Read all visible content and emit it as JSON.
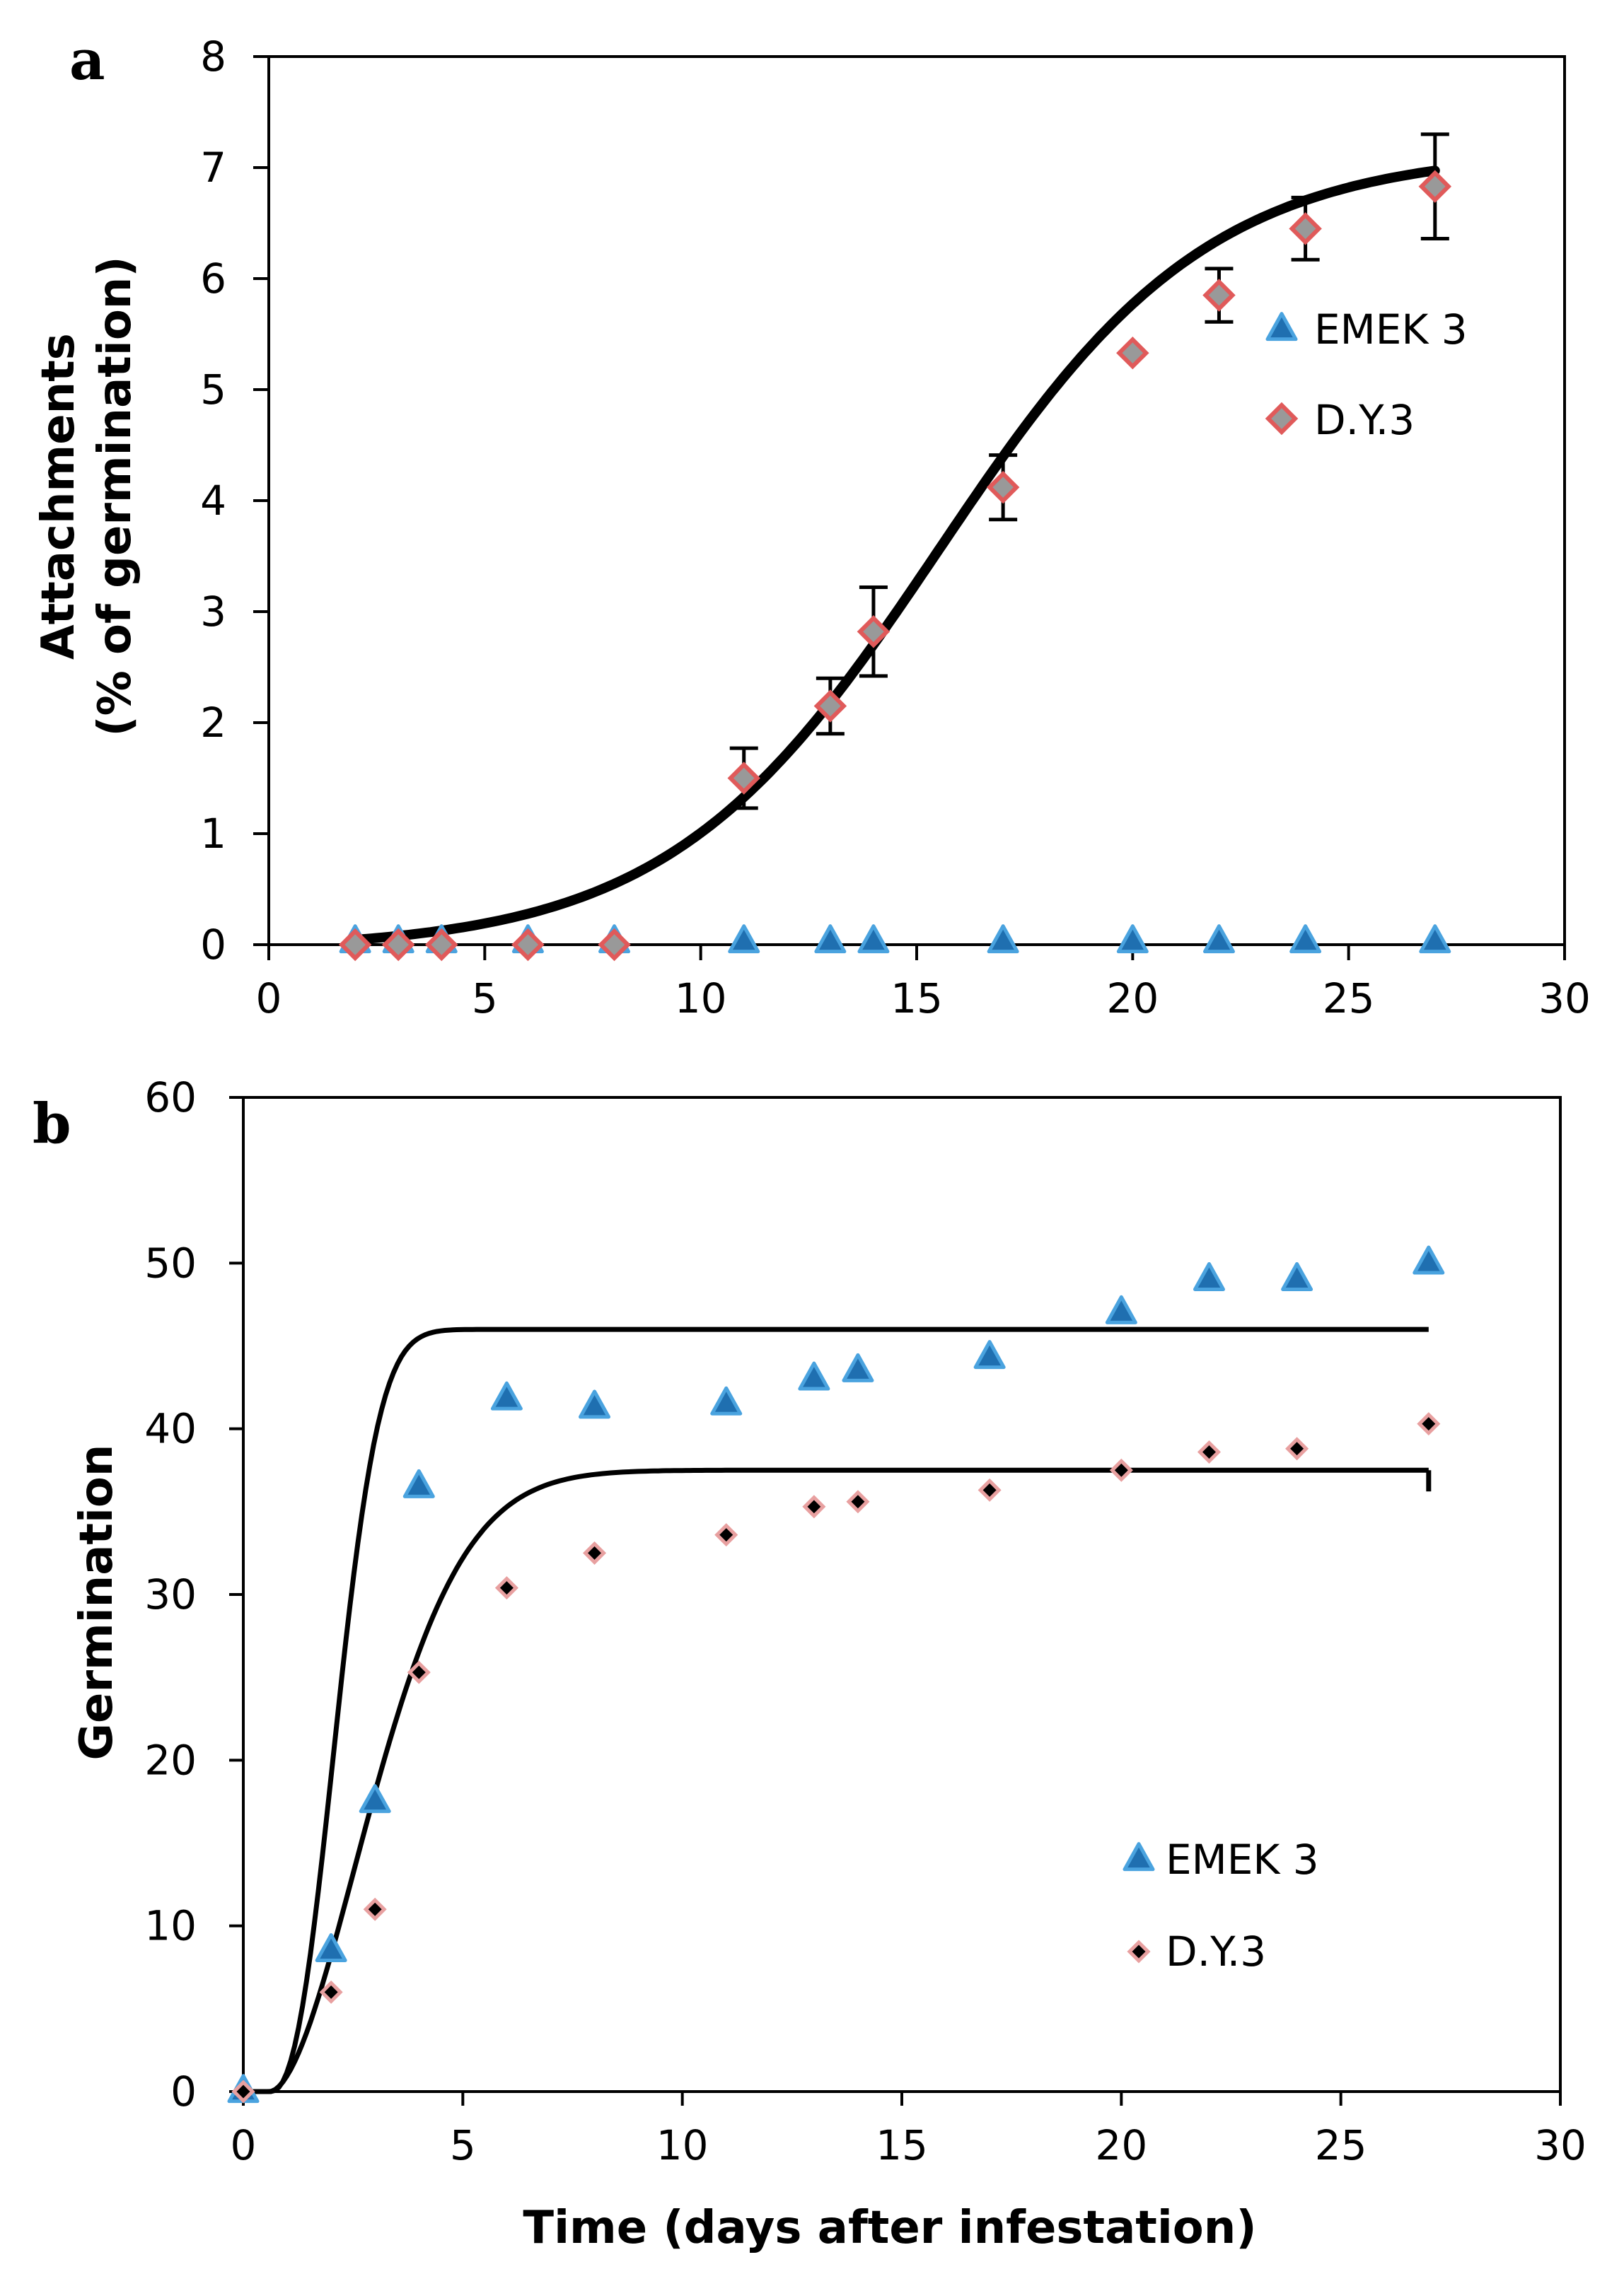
{
  "chart_data": [
    {
      "type": "scatter",
      "panel_label": "a",
      "title": "",
      "xlabel": "",
      "ylabel_line1": "Attachments",
      "ylabel_line2": "(% of germination)",
      "xlim": [
        0,
        30
      ],
      "ylim": [
        0,
        8
      ],
      "xticks": [
        0,
        5,
        10,
        15,
        20,
        25,
        30
      ],
      "yticks": [
        0,
        1,
        2,
        3,
        4,
        5,
        6,
        7,
        8
      ],
      "legend_position": "right",
      "series": [
        {
          "name": "EMEK 3",
          "marker": "triangle",
          "color": "#1f6fb0",
          "x": [
            2,
            3,
            4,
            6,
            8,
            11,
            13,
            14,
            17,
            20,
            22,
            24,
            27
          ],
          "y": [
            0,
            0,
            0,
            0,
            0,
            0,
            0,
            0,
            0,
            0,
            0,
            0,
            0
          ]
        },
        {
          "name": "D.Y.3",
          "marker": "diamond",
          "color": "#999999",
          "edge_color": "#e05a5a",
          "x": [
            2,
            3,
            4,
            6,
            8,
            11,
            13,
            14,
            17,
            20,
            22,
            24,
            27
          ],
          "y": [
            0,
            0,
            0,
            0,
            0,
            1.5,
            2.15,
            2.82,
            4.12,
            5.33,
            5.85,
            6.45,
            6.83
          ],
          "error": [
            0,
            0,
            0,
            0,
            0,
            0.27,
            0.25,
            0.4,
            0.29,
            0,
            0.24,
            0.28,
            0.47
          ]
        }
      ],
      "fit_curve": {
        "type": "logistic",
        "max": 7.2,
        "midpoint": 15.5,
        "rate": 0.32,
        "x_range": [
          2,
          27
        ]
      }
    },
    {
      "type": "scatter",
      "panel_label": "b",
      "title": "",
      "xlabel": "Time (days after infestation)",
      "ylabel": "Germination",
      "xlim": [
        0,
        30
      ],
      "ylim": [
        0,
        60
      ],
      "xticks": [
        0,
        5,
        10,
        15,
        20,
        25,
        30
      ],
      "yticks": [
        0,
        10,
        20,
        30,
        40,
        50,
        60
      ],
      "legend_position": "bottom-right",
      "series": [
        {
          "name": "EMEK 3",
          "marker": "triangle",
          "color": "#1f6fb0",
          "x": [
            0,
            2,
            3,
            4,
            6,
            8,
            11,
            13,
            14,
            17,
            20,
            22,
            24,
            27
          ],
          "y": [
            0,
            8.5,
            17.5,
            36.5,
            41.8,
            41.3,
            41.5,
            43,
            43.5,
            44.3,
            47,
            49,
            49,
            50
          ]
        },
        {
          "name": "D.Y.3",
          "marker": "diamond",
          "color": "#000000",
          "edge_color": "#e8a0a0",
          "x": [
            0,
            2,
            3,
            4,
            6,
            8,
            11,
            13,
            14,
            17,
            20,
            22,
            24,
            27
          ],
          "y": [
            0,
            6,
            11,
            25.3,
            30.4,
            32.5,
            33.6,
            35.3,
            35.6,
            36.3,
            37.5,
            38.6,
            38.8,
            40.3
          ]
        }
      ],
      "fit_curves": [
        {
          "series": "EMEK 3",
          "asymptote": 46,
          "x0": 0.6,
          "rate": 0.55,
          "power": 2.4,
          "x_range": [
            0,
            27
          ]
        },
        {
          "series": "D.Y.3",
          "asymptote": 37.5,
          "x0": 0.6,
          "rate": 0.33,
          "power": 1.8,
          "x_range": [
            0,
            27
          ]
        }
      ]
    }
  ]
}
